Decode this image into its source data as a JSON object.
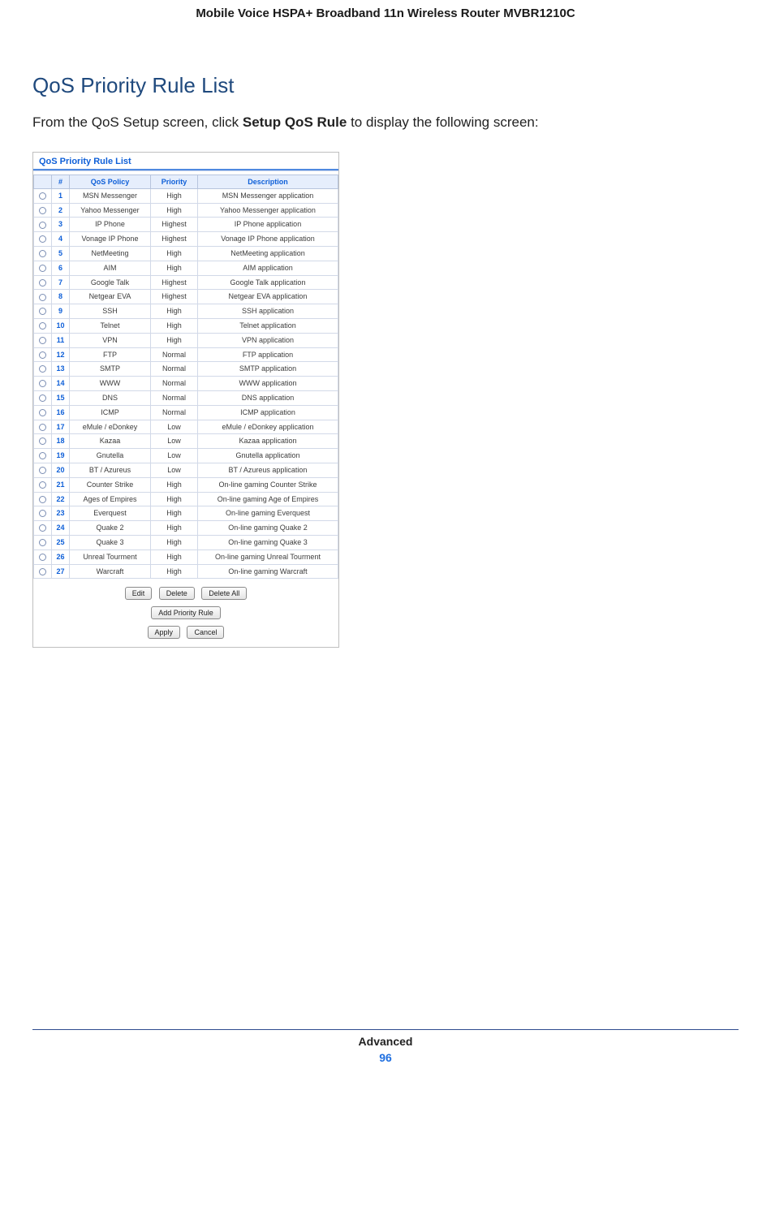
{
  "doc": {
    "header": "Mobile Voice HSPA+ Broadband 11n Wireless Router MVBR1210C",
    "section_title": "QoS Priority Rule List",
    "intro_before": "From the QoS Setup screen, click ",
    "intro_bold": "Setup QoS Rule",
    "intro_after": " to display the following screen:",
    "footer_label": "Advanced",
    "footer_page": "96"
  },
  "panel": {
    "title": "QoS Priority Rule List"
  },
  "table": {
    "headers": {
      "num": "#",
      "policy": "QoS Policy",
      "priority": "Priority",
      "desc": "Description"
    },
    "col_widths": {
      "radio": 22,
      "num": 22,
      "policy": 100,
      "priority": 58,
      "desc": 176
    },
    "header_bg": "#e6eefc",
    "header_fg": "#0e5fd8",
    "border_color": "#d2d9e8",
    "rows": [
      {
        "n": "1",
        "policy": "MSN Messenger",
        "priority": "High",
        "desc": "MSN Messenger application"
      },
      {
        "n": "2",
        "policy": "Yahoo Messenger",
        "priority": "High",
        "desc": "Yahoo Messenger application"
      },
      {
        "n": "3",
        "policy": "IP Phone",
        "priority": "Highest",
        "desc": "IP Phone application"
      },
      {
        "n": "4",
        "policy": "Vonage IP Phone",
        "priority": "Highest",
        "desc": "Vonage IP Phone application"
      },
      {
        "n": "5",
        "policy": "NetMeeting",
        "priority": "High",
        "desc": "NetMeeting application"
      },
      {
        "n": "6",
        "policy": "AIM",
        "priority": "High",
        "desc": "AIM application"
      },
      {
        "n": "7",
        "policy": "Google Talk",
        "priority": "Highest",
        "desc": "Google Talk application"
      },
      {
        "n": "8",
        "policy": "Netgear EVA",
        "priority": "Highest",
        "desc": "Netgear EVA application"
      },
      {
        "n": "9",
        "policy": "SSH",
        "priority": "High",
        "desc": "SSH application"
      },
      {
        "n": "10",
        "policy": "Telnet",
        "priority": "High",
        "desc": "Telnet application"
      },
      {
        "n": "11",
        "policy": "VPN",
        "priority": "High",
        "desc": "VPN application"
      },
      {
        "n": "12",
        "policy": "FTP",
        "priority": "Normal",
        "desc": "FTP application"
      },
      {
        "n": "13",
        "policy": "SMTP",
        "priority": "Normal",
        "desc": "SMTP application"
      },
      {
        "n": "14",
        "policy": "WWW",
        "priority": "Normal",
        "desc": "WWW application"
      },
      {
        "n": "15",
        "policy": "DNS",
        "priority": "Normal",
        "desc": "DNS application"
      },
      {
        "n": "16",
        "policy": "ICMP",
        "priority": "Normal",
        "desc": "ICMP application"
      },
      {
        "n": "17",
        "policy": "eMule / eDonkey",
        "priority": "Low",
        "desc": "eMule / eDonkey application"
      },
      {
        "n": "18",
        "policy": "Kazaa",
        "priority": "Low",
        "desc": "Kazaa application"
      },
      {
        "n": "19",
        "policy": "Gnutella",
        "priority": "Low",
        "desc": "Gnutella application"
      },
      {
        "n": "20",
        "policy": "BT / Azureus",
        "priority": "Low",
        "desc": "BT / Azureus application"
      },
      {
        "n": "21",
        "policy": "Counter Strike",
        "priority": "High",
        "desc": "On-line gaming Counter Strike"
      },
      {
        "n": "22",
        "policy": "Ages of Empires",
        "priority": "High",
        "desc": "On-line gaming Age of Empires"
      },
      {
        "n": "23",
        "policy": "Everquest",
        "priority": "High",
        "desc": "On-line gaming Everquest"
      },
      {
        "n": "24",
        "policy": "Quake 2",
        "priority": "High",
        "desc": "On-line gaming Quake 2"
      },
      {
        "n": "25",
        "policy": "Quake 3",
        "priority": "High",
        "desc": "On-line gaming Quake 3"
      },
      {
        "n": "26",
        "policy": "Unreal Tourment",
        "priority": "High",
        "desc": "On-line gaming Unreal Tourment"
      },
      {
        "n": "27",
        "policy": "Warcraft",
        "priority": "High",
        "desc": "On-line gaming Warcraft"
      }
    ]
  },
  "buttons": {
    "row1": [
      "Edit",
      "Delete",
      "Delete All"
    ],
    "row2": [
      "Add Priority Rule"
    ],
    "row3": [
      "Apply",
      "Cancel"
    ]
  }
}
